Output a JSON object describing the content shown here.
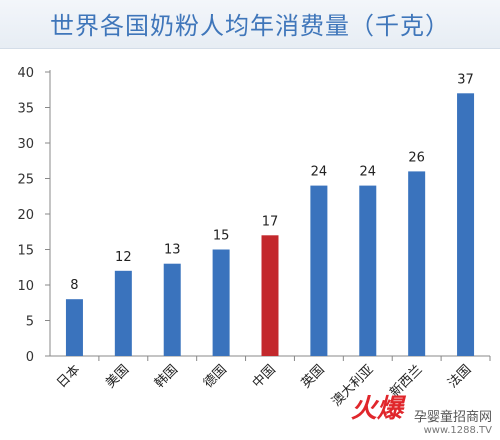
{
  "chart_data": {
    "type": "bar",
    "title": "世界各国奶粉人均年消费量（千克）",
    "categories": [
      "日本",
      "美国",
      "韩国",
      "德国",
      "中国",
      "英国",
      "澳大利亚",
      "新西兰",
      "法国"
    ],
    "values": [
      8,
      12,
      13,
      15,
      17,
      24,
      24,
      26,
      37
    ],
    "ylim": [
      0,
      40
    ],
    "yticks": [
      0,
      5,
      10,
      15,
      20,
      25,
      30,
      35,
      40
    ],
    "grid": false,
    "legend": "none",
    "colors": {
      "bar": "#3a73bd",
      "highlight": "#c3282c",
      "title": "#3f76ba"
    },
    "highlight_category": "中国"
  },
  "watermark": {
    "logo": "火爆",
    "site": "孕婴童招商网",
    "url": "www.1288.TV"
  }
}
